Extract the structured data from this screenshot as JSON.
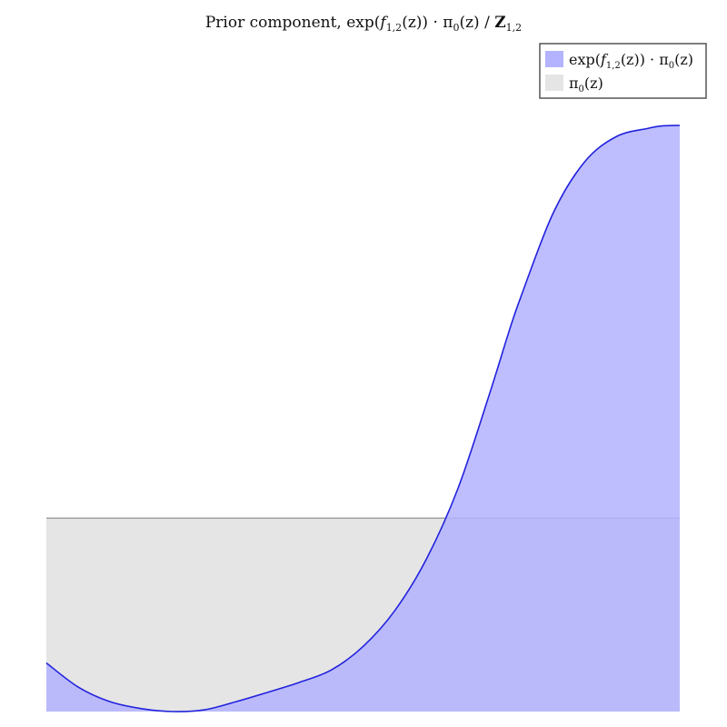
{
  "chart_data": {
    "type": "area",
    "title": "Prior component, exp(f₁,₂(z)) · π₀(z) / Z₁,₂",
    "title_parts": {
      "lead": "Prior component, ",
      "exp": "exp(",
      "f": "f",
      "f_sub": "1,2",
      "mid": "(z)) · π",
      "pi_sub": "0",
      "z": "(z) / ",
      "Z": "Z",
      "Z_sub": "1,2"
    },
    "xlabel": "",
    "ylabel": "",
    "grid": false,
    "legend_position": "top-right",
    "xlim": [
      0,
      1
    ],
    "ylim": [
      0,
      1
    ],
    "series": [
      {
        "name": "exp(f₁,₂(z)) · π₀(z)",
        "legend_parts": {
          "exp": "exp(",
          "f": "f",
          "f_sub": "1,2",
          "mid": "(z)) · π",
          "pi_sub": "0",
          "end": "(z)"
        },
        "fill": "#b3b3ff",
        "stroke": "#2222dd",
        "x": [
          0.0,
          0.05,
          0.1,
          0.15,
          0.2,
          0.25,
          0.3,
          0.35,
          0.4,
          0.45,
          0.5,
          0.55,
          0.6,
          0.65,
          0.7,
          0.73,
          0.75,
          0.8,
          0.85,
          0.9,
          0.95,
          0.97,
          1.0
        ],
        "y": [
          0.083,
          0.042,
          0.017,
          0.005,
          0.0,
          0.003,
          0.017,
          0.033,
          0.05,
          0.071,
          0.111,
          0.172,
          0.26,
          0.381,
          0.543,
          0.647,
          0.71,
          0.85,
          0.938,
          0.981,
          0.995,
          0.999,
          1.0
        ]
      },
      {
        "name": "π₀(z)",
        "legend_parts": {
          "pi": "π",
          "pi_sub": "0",
          "end": "(z)"
        },
        "fill": "#e5e5e5",
        "stroke": "#999999",
        "x": [
          0.0,
          1.0
        ],
        "y": [
          0.33,
          0.33
        ]
      }
    ]
  }
}
